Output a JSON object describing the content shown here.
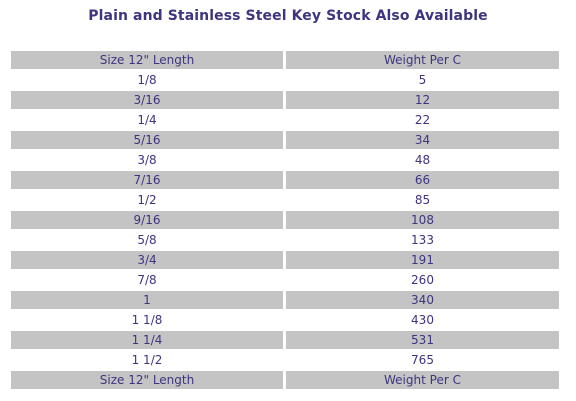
{
  "title": "Plain and Stainless Steel Key Stock Also Available",
  "table": {
    "headers": [
      "Size 12\" Length",
      "Weight Per C"
    ],
    "rows": [
      [
        "1/8",
        "5"
      ],
      [
        "3/16",
        "12"
      ],
      [
        "1/4",
        "22"
      ],
      [
        "5/16",
        "34"
      ],
      [
        "3/8",
        "48"
      ],
      [
        "7/16",
        "66"
      ],
      [
        "1/2",
        "85"
      ],
      [
        "9/16",
        "108"
      ],
      [
        "5/8",
        "133"
      ],
      [
        "3/4",
        "191"
      ],
      [
        "7/8",
        "260"
      ],
      [
        "1",
        "340"
      ],
      [
        "1 1/8",
        "430"
      ],
      [
        "1 1/4",
        "531"
      ],
      [
        "1 1/2",
        "765"
      ]
    ],
    "footer": [
      "Size 12\" Length",
      "Weight Per C"
    ]
  },
  "colors": {
    "text": "#3d3580",
    "stripe": "#c4c4c4",
    "background": "#ffffff"
  }
}
